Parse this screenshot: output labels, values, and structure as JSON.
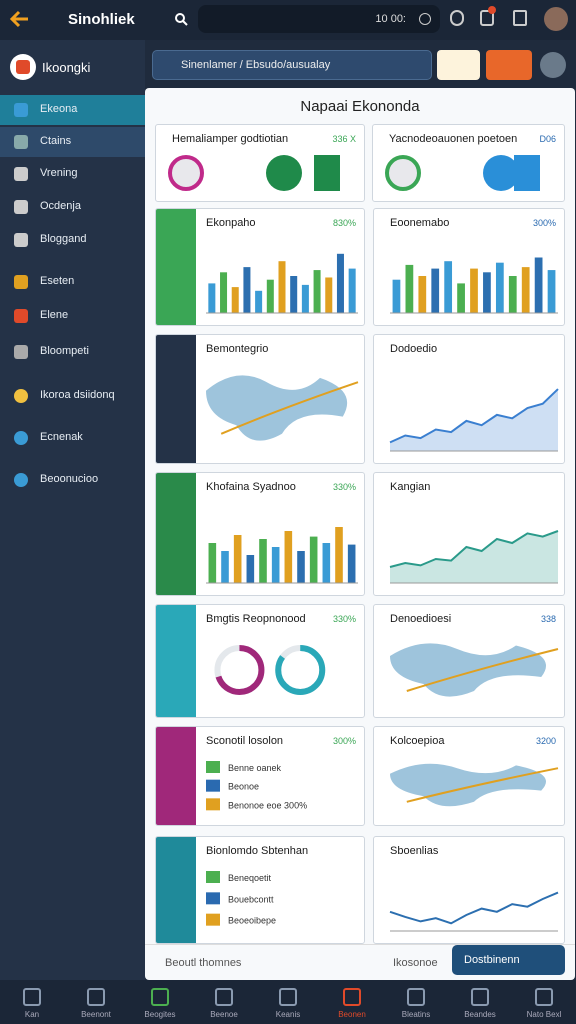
{
  "topbar": {
    "title": "Sinohliek",
    "status": "10 00:"
  },
  "sidebar": {
    "brand": "Ikoongki",
    "items": [
      "Ekeona",
      "Ctains",
      "Vrening",
      "Ocdenja",
      "Bloggand",
      "Eseten",
      "Elene",
      "Bloompeti",
      "Ikoroa dsiidonq",
      "Ecnenak",
      "Beoonucioo"
    ]
  },
  "search": {
    "text": "Sinenlamer / Ebsudo/ausualay"
  },
  "main": {
    "title": "Napaai Ekononda",
    "cards": [
      {
        "title": "Hemaliamper godtiotian",
        "badge": "336 X",
        "chart": "summary"
      },
      {
        "title": "Yacnodeoauonen poetoen",
        "badge": "D06",
        "chart": "summary"
      },
      {
        "title": "Ekonpaho",
        "badge": "830%",
        "chart": "bar",
        "color": [
          "#3a9bd5",
          "#4caf50",
          "#e0a020",
          "#2c6fb0"
        ],
        "values": [
          40,
          55,
          35,
          62,
          30,
          45,
          70,
          50,
          38,
          58,
          48,
          80,
          60
        ]
      },
      {
        "title": "Eoonemabo",
        "badge": "300%",
        "chart": "bar",
        "color": [
          "#3a9bd5",
          "#4caf50",
          "#e0a020",
          "#2c6fb0"
        ],
        "values": [
          45,
          65,
          50,
          60,
          70,
          40,
          60,
          55,
          68,
          50,
          62,
          75,
          58
        ]
      },
      {
        "title": "Bemontegrio",
        "chart": "map"
      },
      {
        "title": "Dodoedio",
        "chart": "area",
        "color": "#3a7fd0",
        "values": [
          10,
          18,
          15,
          25,
          22,
          35,
          30,
          42,
          38,
          50,
          55,
          72
        ]
      },
      {
        "title": "Khofaina Syadnoo",
        "badge": "330%",
        "chart": "bar",
        "color": [
          "#4caf50",
          "#3a9bd5",
          "#e0a020",
          "#2c6fb0"
        ],
        "values": [
          50,
          40,
          60,
          35,
          55,
          45,
          65,
          40,
          58,
          50,
          70,
          48
        ]
      },
      {
        "title": "Kangian",
        "chart": "area",
        "color": "#2a9a8a",
        "values": [
          20,
          25,
          22,
          30,
          28,
          45,
          40,
          55,
          50,
          62,
          58,
          65
        ]
      },
      {
        "title": "Bmgtis Reopnonood",
        "badge": "330%",
        "chart": "donut",
        "color": [
          "#a0287a",
          "#2aa8b8"
        ],
        "values": [
          70,
          85
        ]
      },
      {
        "title": "Denoedioesi",
        "badge": "338",
        "chart": "map"
      },
      {
        "title": "Sconotil losolon",
        "badge": "300%",
        "chart": "list",
        "items": [
          "Benne oanek",
          "Beonoe",
          "Benonoe eoe 300%"
        ]
      },
      {
        "title": "Kolcoepioa",
        "badge": "3200",
        "chart": "map"
      },
      {
        "title": "Bionlomdo Sbtenhan",
        "chart": "list",
        "items": [
          "Beneqoetit",
          "Bouebcontt",
          "Beoeoibepe"
        ]
      },
      {
        "title": "Sboenlias",
        "chart": "line",
        "color": "#2c6fb0",
        "values": [
          30,
          22,
          15,
          20,
          12,
          25,
          35,
          30,
          42,
          38,
          50,
          60
        ]
      }
    ]
  },
  "footer": {
    "text": "Beoutl thomnes",
    "status": "Ikosonoe",
    "button": "Dostbinenn"
  },
  "bottom_nav": [
    "Kan",
    "Beenont",
    "Beogites",
    "Beenoe",
    "Keanis",
    "Beonen",
    "Bleatins",
    "Beandes",
    "Nato Bexl"
  ]
}
